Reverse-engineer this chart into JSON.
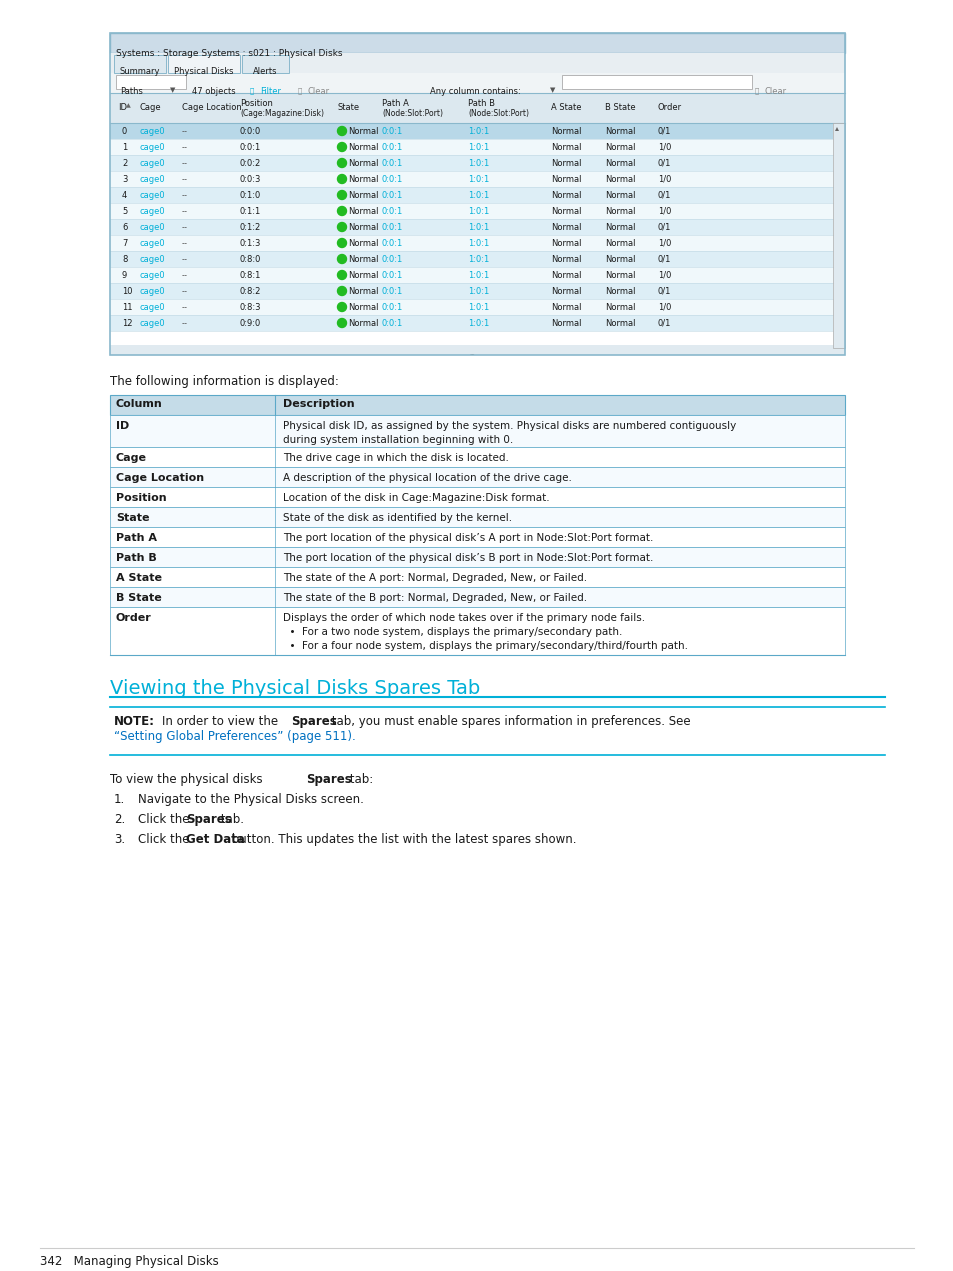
{
  "page_bg": "#ffffff",
  "screenshot_title": "Systems : Storage Systems : s021 : Physical Disks",
  "tabs": [
    "Summary",
    "Physical Disks",
    "Alerts"
  ],
  "active_tab": "Physical Disks",
  "table_rows": [
    [
      "0",
      "cage0",
      "--",
      "0:0:0",
      "Normal",
      "0:0:1",
      "1:0:1",
      "Normal",
      "Normal",
      "0/1"
    ],
    [
      "1",
      "cage0",
      "--",
      "0:0:1",
      "Normal",
      "0:0:1",
      "1:0:1",
      "Normal",
      "Normal",
      "1/0"
    ],
    [
      "2",
      "cage0",
      "--",
      "0:0:2",
      "Normal",
      "0:0:1",
      "1:0:1",
      "Normal",
      "Normal",
      "0/1"
    ],
    [
      "3",
      "cage0",
      "--",
      "0:0:3",
      "Normal",
      "0:0:1",
      "1:0:1",
      "Normal",
      "Normal",
      "1/0"
    ],
    [
      "4",
      "cage0",
      "--",
      "0:1:0",
      "Normal",
      "0:0:1",
      "1:0:1",
      "Normal",
      "Normal",
      "0/1"
    ],
    [
      "5",
      "cage0",
      "--",
      "0:1:1",
      "Normal",
      "0:0:1",
      "1:0:1",
      "Normal",
      "Normal",
      "1/0"
    ],
    [
      "6",
      "cage0",
      "--",
      "0:1:2",
      "Normal",
      "0:0:1",
      "1:0:1",
      "Normal",
      "Normal",
      "0/1"
    ],
    [
      "7",
      "cage0",
      "--",
      "0:1:3",
      "Normal",
      "0:0:1",
      "1:0:1",
      "Normal",
      "Normal",
      "1/0"
    ],
    [
      "8",
      "cage0",
      "--",
      "0:8:0",
      "Normal",
      "0:0:1",
      "1:0:1",
      "Normal",
      "Normal",
      "0/1"
    ],
    [
      "9",
      "cage0",
      "--",
      "0:8:1",
      "Normal",
      "0:0:1",
      "1:0:1",
      "Normal",
      "Normal",
      "1/0"
    ],
    [
      "10",
      "cage0",
      "--",
      "0:8:2",
      "Normal",
      "0:0:1",
      "1:0:1",
      "Normal",
      "Normal",
      "0/1"
    ],
    [
      "11",
      "cage0",
      "--",
      "0:8:3",
      "Normal",
      "0:0:1",
      "1:0:1",
      "Normal",
      "Normal",
      "1/0"
    ],
    [
      "12",
      "cage0",
      "--",
      "0:9:0",
      "Normal",
      "0:0:1",
      "1:0:1",
      "Normal",
      "Normal",
      "0/1"
    ]
  ],
  "below_text": "The following information is displayed:",
  "info_table_rows": [
    [
      "ID",
      "Physical disk ID, as assigned by the system. Physical disks are numbered contiguously\nduring system installation beginning with 0.",
      32
    ],
    [
      "Cage",
      "The drive cage in which the disk is located.",
      20
    ],
    [
      "Cage Location",
      "A description of the physical location of the drive cage.",
      20
    ],
    [
      "Position",
      "Location of the disk in Cage:Magazine:Disk format.",
      20
    ],
    [
      "State",
      "State of the disk as identified by the kernel.",
      20
    ],
    [
      "Path A",
      "The port location of the physical disk’s A port in Node:Slot:Port format.",
      20
    ],
    [
      "Path B",
      "The port location of the physical disk’s B port in Node:Slot:Port format.",
      20
    ],
    [
      "A State",
      "The state of the A port: Normal, Degraded, New, or Failed.",
      20
    ],
    [
      "B State",
      "The state of the B port: Normal, Degraded, New, or Failed.",
      20
    ],
    [
      "Order",
      "Displays the order of which node takes over if the primary node fails.\n  •  For a two node system, displays the primary/secondary path.\n  •  For a four node system, displays the primary/secondary/third/fourth path.",
      48
    ]
  ],
  "section_title": "Viewing the Physical Disks Spares Tab",
  "note_label": "NOTE:",
  "note_text": "   In order to view the Spares tab, you must enable spares information in preferences. See",
  "note_link": "“Setting Global Preferences” (page 511).",
  "steps_intro_normal": "To view the physical disks ",
  "steps_intro_bold": "Spares",
  "steps_intro_end": " tab:",
  "steps": [
    [
      "Navigate to the Physical Disks screen."
    ],
    [
      "Click the ",
      "Spares",
      " tab."
    ],
    [
      "Click the ",
      "Get Data",
      " button. This updates the list with the latest spares shown."
    ]
  ],
  "footer_text": "342   Managing Physical Disks",
  "cyan_color": "#00b0d8",
  "link_color": "#0070c0",
  "info_header_bg": "#c5dce8",
  "info_border": "#5ba8c8",
  "green_dot": "#22bb22",
  "note_border": "#00b0d8",
  "row_alt_bg": "#ddeef6",
  "row_bg": "#f0f8fb",
  "win_title_bg": "#ccdce8",
  "tab_active_bg": "#f0f4f7",
  "tab_inactive_bg": "#dce8ef",
  "toolbar_bg": "#e8eef2",
  "table_header_bg": "#dce8ef",
  "ss_border": "#8ab8cc"
}
